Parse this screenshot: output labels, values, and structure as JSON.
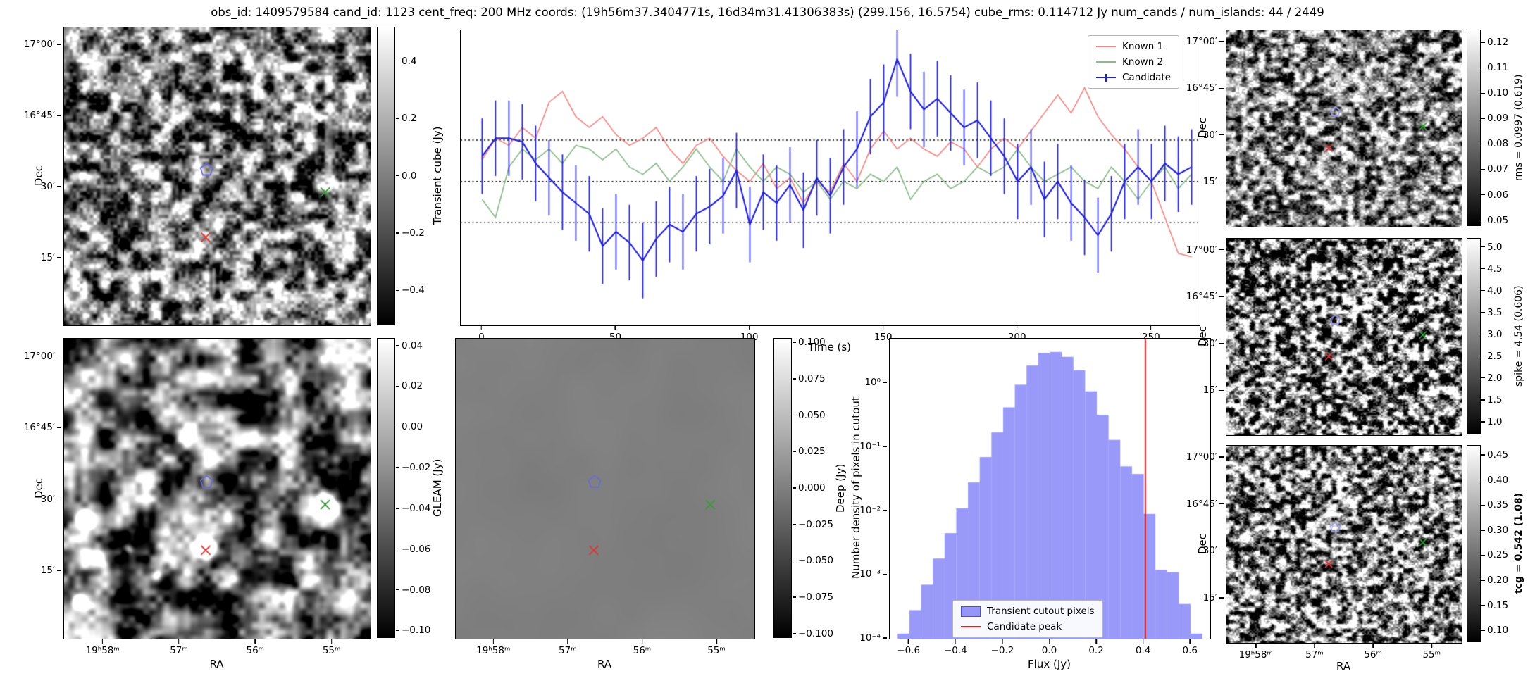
{
  "title": "obs_id: 1409579584 cand_id: 1123 cent_freq: 200 MHz coords: (19h56m37.3404771s, 16d34m31.41306383s) (299.156, 16.5754) cube_rms: 0.114712 Jy num_cands / num_islands: 44 / 2449",
  "labels": {
    "dec": "Dec",
    "ra": "RA"
  },
  "image_axes": {
    "dec_ticks": [
      "17°00′",
      "16°45′",
      "30′",
      "15′"
    ],
    "ra_ticks": [
      "19ʰ58ᵐ",
      "57ᵐ",
      "56ᵐ",
      "55ᵐ"
    ]
  },
  "markers": {
    "cutout": [
      {
        "type": "pentagon",
        "color": "#6a6ad4",
        "x": 0.465,
        "y": 0.478
      },
      {
        "type": "x",
        "color": "#e03434",
        "x": 0.462,
        "y": 0.705
      },
      {
        "type": "x",
        "color": "#3a9a3a",
        "x": 0.852,
        "y": 0.553
      }
    ],
    "right": [
      {
        "type": "pentagon",
        "color": "#9a9ae8",
        "x": 0.462,
        "y": 0.415
      },
      {
        "type": "x",
        "color": "#e03434",
        "x": 0.435,
        "y": 0.6
      },
      {
        "type": "x",
        "color": "#3a9a3a",
        "x": 0.835,
        "y": 0.49
      }
    ]
  },
  "colorbars": {
    "transient": {
      "label": "Transient cube (Jy)",
      "ticks": [
        "0.4",
        "0.2",
        "0.0",
        "−0.2",
        "−0.4"
      ]
    },
    "gleam": {
      "label": "GLEAM (Jy)",
      "ticks": [
        "0.04",
        "0.02",
        "0.00",
        "−0.02",
        "−0.04",
        "−0.06",
        "−0.08",
        "−0.10"
      ]
    },
    "deep": {
      "label": "Deep (Jy)",
      "ticks": [
        "0.100",
        "0.075",
        "0.050",
        "0.025",
        "0.000",
        "−0.025",
        "−0.050",
        "−0.075",
        "−0.100"
      ]
    },
    "rms": {
      "label": "rms = 0.0997 (0.619)",
      "ticks": [
        "0.12",
        "0.11",
        "0.10",
        "0.09",
        "0.08",
        "0.07",
        "0.06",
        "0.05"
      ]
    },
    "spike": {
      "label": "spike = 4.54 (0.606)",
      "ticks": [
        "5.0",
        "4.5",
        "4.0",
        "3.5",
        "3.0",
        "2.5",
        "2.0",
        "1.5",
        "1.0"
      ]
    },
    "tcg": {
      "label": "tcg = 0.542 (1.08)",
      "ticks": [
        "0.45",
        "0.40",
        "0.35",
        "0.30",
        "0.25",
        "0.20",
        "0.15",
        "0.10"
      ]
    }
  },
  "chart_data": [
    {
      "type": "line",
      "title": "",
      "xlabel": "Time (s)",
      "ylabel": "",
      "xlim": [
        -8,
        268
      ],
      "ylim": [
        -0.4,
        0.42
      ],
      "xtick_labels": [
        "0",
        "50",
        "100",
        "150",
        "200",
        "250"
      ],
      "xticks": [
        0,
        50,
        100,
        150,
        200,
        250
      ],
      "dotted_hlines": [
        0.114712,
        0.0,
        -0.114712
      ],
      "grid": false,
      "legend_position": "upper right",
      "x": [
        0,
        5,
        10,
        15,
        20,
        25,
        30,
        35,
        40,
        45,
        50,
        55,
        60,
        65,
        70,
        75,
        80,
        85,
        90,
        95,
        100,
        105,
        110,
        115,
        120,
        125,
        130,
        135,
        140,
        145,
        150,
        155,
        160,
        165,
        170,
        175,
        180,
        185,
        190,
        195,
        200,
        205,
        210,
        215,
        220,
        225,
        230,
        235,
        240,
        245,
        250,
        255,
        260,
        265
      ],
      "series": [
        {
          "name": "Known 1",
          "color": "#ef8a87",
          "values": [
            0.06,
            0.12,
            0.1,
            0.15,
            0.12,
            0.22,
            0.25,
            0.18,
            0.15,
            0.18,
            0.13,
            0.1,
            0.12,
            0.15,
            0.09,
            0.05,
            0.1,
            0.12,
            0.07,
            0.03,
            0.0,
            0.05,
            -0.02,
            0.01,
            -0.06,
            0.0,
            -0.03,
            0.05,
            0.0,
            0.09,
            0.14,
            0.09,
            0.12,
            0.09,
            0.07,
            0.11,
            0.09,
            0.04,
            0.09,
            0.12,
            0.09,
            0.14,
            0.19,
            0.24,
            0.19,
            0.26,
            0.18,
            0.13,
            0.09,
            0.04,
            0.0,
            -0.1,
            -0.2,
            -0.21
          ]
        },
        {
          "name": "Known 2",
          "color": "#8cba8c",
          "values": [
            -0.05,
            -0.1,
            0.04,
            0.09,
            0.06,
            0.09,
            0.05,
            0.1,
            0.09,
            0.06,
            0.09,
            0.04,
            0.02,
            0.05,
            0.0,
            0.04,
            0.09,
            0.04,
            0.0,
            0.09,
            0.04,
            0.0,
            0.04,
            0.02,
            -0.03,
            0.0,
            -0.05,
            0.0,
            -0.02,
            0.02,
            0.0,
            0.04,
            -0.05,
            0.0,
            0.02,
            -0.02,
            0.0,
            0.04,
            0.02,
            0.04,
            0.09,
            0.04,
            0.0,
            0.02,
            0.04,
            0.0,
            -0.02,
            0.04,
            0.0,
            -0.05,
            0.0,
            0.04,
            -0.02,
            0.02
          ]
        },
        {
          "name": "Candidate",
          "color": "#2020cf",
          "errorbar": 0.105,
          "values": [
            0.07,
            0.12,
            0.12,
            0.11,
            0.05,
            0.01,
            -0.03,
            -0.06,
            -0.09,
            -0.18,
            -0.14,
            -0.17,
            -0.22,
            -0.16,
            -0.12,
            -0.14,
            -0.09,
            -0.07,
            -0.04,
            0.03,
            -0.12,
            -0.03,
            -0.06,
            -0.01,
            -0.08,
            0.01,
            -0.04,
            0.04,
            0.09,
            0.18,
            0.22,
            0.34,
            0.25,
            0.2,
            0.23,
            0.19,
            0.15,
            0.17,
            0.12,
            0.07,
            0.0,
            0.04,
            -0.05,
            0.0,
            -0.06,
            -0.1,
            -0.15,
            -0.09,
            0.0,
            0.04,
            0.0,
            0.05,
            0.02,
            0.04
          ]
        }
      ]
    },
    {
      "type": "bar",
      "xlabel": "Flux (Jy)",
      "ylabel": "Number density of pixels in cutout",
      "yscale": "log",
      "xlim": [
        -0.684,
        0.684
      ],
      "ylim_log": [
        0.0001,
        5.0
      ],
      "xtick_labels": [
        "−0.6",
        "−0.4",
        "−0.2",
        "0.0",
        "0.2",
        "0.4",
        "0.6"
      ],
      "ytick_labels": [
        "10⁰",
        "10⁻¹",
        "10⁻²",
        "10⁻³",
        "10⁻⁴"
      ],
      "ytick_values": [
        1,
        0.1,
        0.01,
        0.001,
        0.0001
      ],
      "bin_width": 0.05,
      "bin_centers": [
        -0.625,
        -0.575,
        -0.525,
        -0.475,
        -0.425,
        -0.375,
        -0.325,
        -0.275,
        -0.225,
        -0.175,
        -0.125,
        -0.075,
        -0.025,
        0.025,
        0.075,
        0.125,
        0.175,
        0.225,
        0.275,
        0.325,
        0.375,
        0.425,
        0.475,
        0.525,
        0.575,
        0.625
      ],
      "densities": [
        0.00012,
        0.00028,
        0.0007,
        0.0018,
        0.0045,
        0.011,
        0.028,
        0.07,
        0.17,
        0.42,
        0.95,
        1.9,
        3.0,
        3.1,
        2.6,
        1.6,
        0.75,
        0.32,
        0.13,
        0.05,
        0.038,
        0.009,
        0.0012,
        0.0011,
        0.00035,
        0.00012
      ],
      "bar_color": "rgba(85,85,245,0.6)",
      "vline": {
        "x": 0.407,
        "color": "#e02020",
        "label": "Candidate peak"
      },
      "legend": [
        "Transient cutout pixels",
        "Candidate peak"
      ]
    }
  ]
}
